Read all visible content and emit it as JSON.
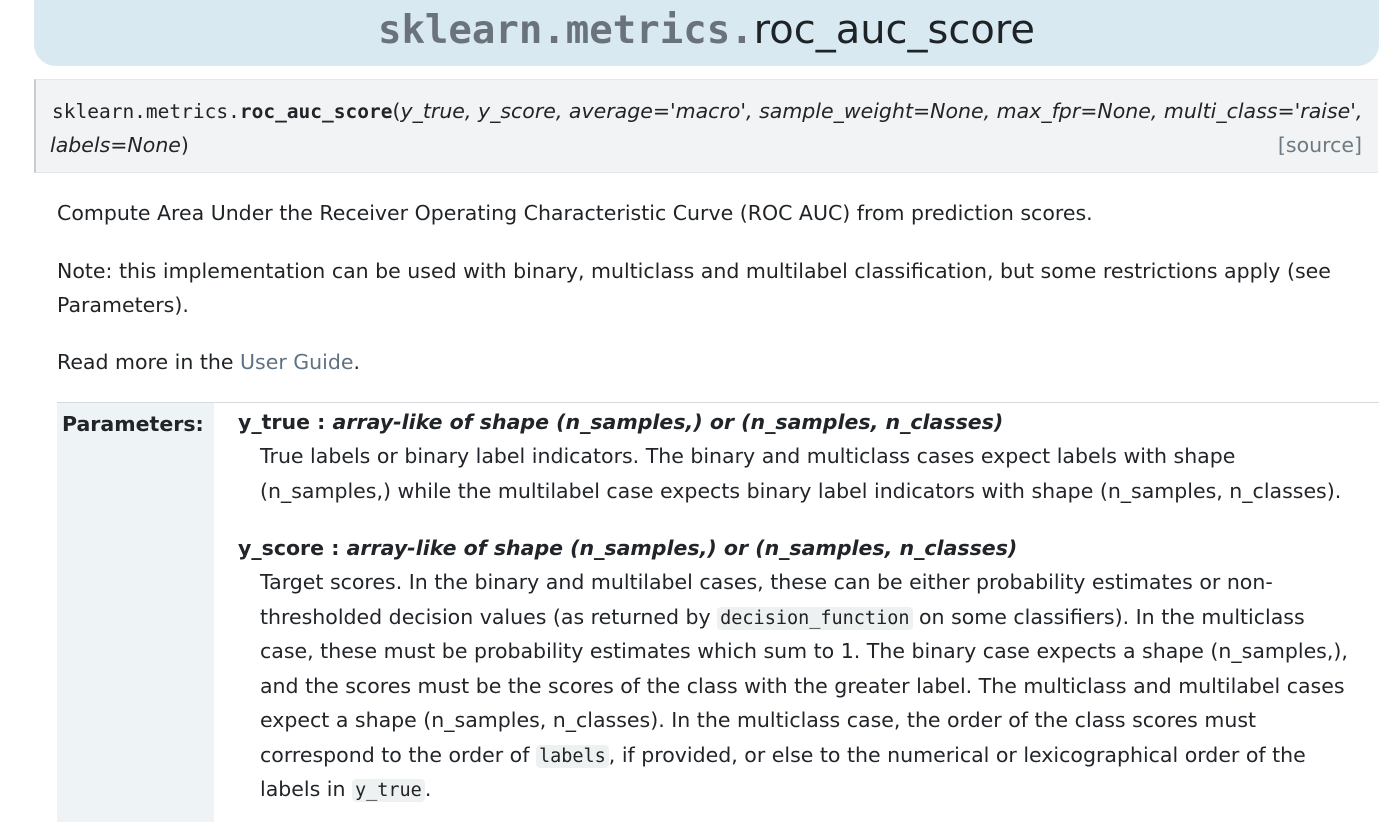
{
  "title": {
    "module": "sklearn.metrics.",
    "function": "roc_auc_score"
  },
  "signature": {
    "module": "sklearn.metrics.",
    "function": "roc_auc_score",
    "open_paren": "(",
    "args_line1": "y_true, y_score, average='macro', sample_weight=None, max_fpr=None, multi_class='raise',",
    "args_line2": "labels=None",
    "close_paren": ")",
    "source_link": "[source]"
  },
  "description": {
    "summary": "Compute Area Under the Receiver Operating Characteristic Curve (ROC AUC) from prediction scores.",
    "note_line1": "Note: this implementation can be used with binary, multiclass and multilabel classification, but some restrictions apply (see",
    "note_line2": "Parameters).",
    "read_more_prefix": "Read more in the ",
    "user_guide_link": "User Guide",
    "read_more_suffix": "."
  },
  "parameters": {
    "heading": "Parameters:",
    "y_true": {
      "name": "y_true",
      "separator": " : ",
      "type": "array-like of shape (n_samples,) or (n_samples, n_classes)",
      "desc_line1": "True labels or binary label indicators. The binary and multiclass cases expect labels with shape",
      "desc_line2": "(n_samples,) while the multilabel case expects binary label indicators with shape (n_samples, n_classes)."
    },
    "y_score": {
      "name": "y_score",
      "separator": " : ",
      "type": "array-like of shape (n_samples,) or (n_samples, n_classes)",
      "desc_line1": "Target scores. In the binary and multilabel cases, these can be either probability estimates or non-",
      "desc_line2_a": "thresholded decision values (as returned by ",
      "desc_line2_code": "decision_function",
      "desc_line2_b": " on some classifiers). In the multiclass",
      "desc_line3": "case, these must be probability estimates which sum to 1. The binary case expects a shape (n_samples,),",
      "desc_line4": "and the scores must be the scores of the class with the greater label. The multiclass and multilabel cases",
      "desc_line5": "expect a shape (n_samples, n_classes). In the multiclass case, the order of the class scores must",
      "desc_line6_a": "correspond to the order of ",
      "desc_line6_code": "labels",
      "desc_line6_b": ", if provided, or else to the numerical or lexicographical order of the",
      "desc_line7_a": "labels in ",
      "desc_line7_code": "y_true",
      "desc_line7_b": "."
    }
  }
}
